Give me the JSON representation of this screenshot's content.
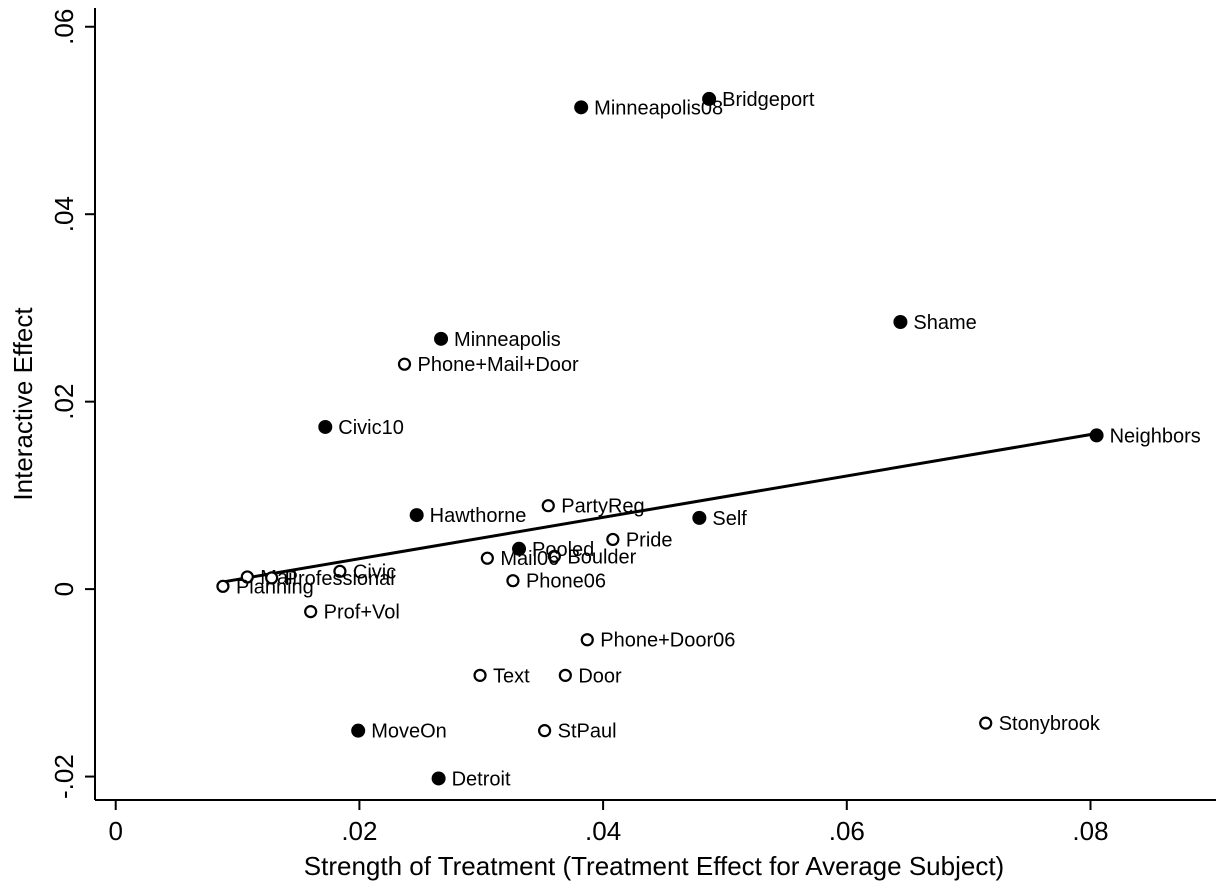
{
  "chart_data": {
    "type": "scatter",
    "xlabel": "Strength of Treatment (Treatment Effect for Average Subject)",
    "ylabel": "Interactive Effect",
    "xlim": [
      -0.0017,
      0.0903
    ],
    "ylim": [
      -0.0225,
      0.062
    ],
    "xticks": [
      {
        "v": 0,
        "label": "0"
      },
      {
        "v": 0.02,
        "label": ".02"
      },
      {
        "v": 0.04,
        "label": ".04"
      },
      {
        "v": 0.06,
        "label": ".06"
      },
      {
        "v": 0.08,
        "label": ".08"
      }
    ],
    "yticks": [
      {
        "v": -0.02,
        "label": "-.02"
      },
      {
        "v": 0,
        "label": "0"
      },
      {
        "v": 0.02,
        "label": ".02"
      },
      {
        "v": 0.04,
        "label": ".04"
      },
      {
        "v": 0.06,
        "label": ".06"
      }
    ],
    "grid": false,
    "fit_line": {
      "x": [
        0.0085,
        0.0805
      ],
      "y": [
        0.0007,
        0.0166
      ]
    },
    "points": [
      {
        "label": "Bridgeport",
        "x": 0.0487,
        "y": 0.0523,
        "filled": true
      },
      {
        "label": "Minneapolis08",
        "x": 0.0382,
        "y": 0.0514,
        "filled": true
      },
      {
        "label": "Shame",
        "x": 0.0644,
        "y": 0.0285,
        "filled": true
      },
      {
        "label": "Minneapolis",
        "x": 0.0267,
        "y": 0.0267,
        "filled": true
      },
      {
        "label": "Phone+Mail+Door",
        "x": 0.0237,
        "y": 0.024,
        "filled": false
      },
      {
        "label": "Civic10",
        "x": 0.0172,
        "y": 0.0173,
        "filled": true
      },
      {
        "label": "Neighbors",
        "x": 0.0805,
        "y": 0.0164,
        "filled": true
      },
      {
        "label": "PartyReg",
        "x": 0.0355,
        "y": 0.0089,
        "filled": false
      },
      {
        "label": "Hawthorne",
        "x": 0.0247,
        "y": 0.0079,
        "filled": true
      },
      {
        "label": "Self",
        "x": 0.0479,
        "y": 0.0076,
        "filled": true
      },
      {
        "label": "Pride",
        "x": 0.0408,
        "y": 0.0053,
        "filled": false
      },
      {
        "label": "Pooled",
        "x": 0.0331,
        "y": 0.0043,
        "filled": true
      },
      {
        "label": "Boulder",
        "x": 0.036,
        "y": 0.0035,
        "filled": false
      },
      {
        "label": "Mail06",
        "x": 0.0305,
        "y": 0.0033,
        "filled": false
      },
      {
        "label": "Civic",
        "x": 0.0184,
        "y": 0.0019,
        "filled": false
      },
      {
        "label": "Mail",
        "x": 0.0108,
        "y": 0.0013,
        "filled": false
      },
      {
        "label": "Professional",
        "x": 0.0128,
        "y": 0.0012,
        "filled": false
      },
      {
        "label": "Phone06",
        "x": 0.0326,
        "y": 0.0009,
        "filled": false
      },
      {
        "label": "Planning",
        "x": 0.0088,
        "y": 0.0003,
        "filled": false
      },
      {
        "label": "Prof+Vol",
        "x": 0.016,
        "y": -0.0024,
        "filled": false
      },
      {
        "label": "Phone+Door06",
        "x": 0.0387,
        "y": -0.0054,
        "filled": false
      },
      {
        "label": "Text",
        "x": 0.0299,
        "y": -0.0092,
        "filled": false
      },
      {
        "label": "Door",
        "x": 0.0369,
        "y": -0.0092,
        "filled": false
      },
      {
        "label": "Stonybrook",
        "x": 0.0714,
        "y": -0.0143,
        "filled": false
      },
      {
        "label": "MoveOn",
        "x": 0.0199,
        "y": -0.0151,
        "filled": true
      },
      {
        "label": "StPaul",
        "x": 0.0352,
        "y": -0.0151,
        "filled": false
      },
      {
        "label": "Detroit",
        "x": 0.0265,
        "y": -0.0202,
        "filled": true
      }
    ]
  }
}
